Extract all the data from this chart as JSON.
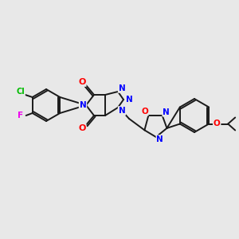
{
  "bg_color": "#e8e8e8",
  "bond_color": "#1a1a1a",
  "bond_width": 1.4,
  "atom_colors": {
    "N": "#0000ff",
    "O": "#ff0000",
    "Cl": "#00bb00",
    "F": "#ee00ee",
    "C": "#1a1a1a"
  },
  "scale": 1.0
}
